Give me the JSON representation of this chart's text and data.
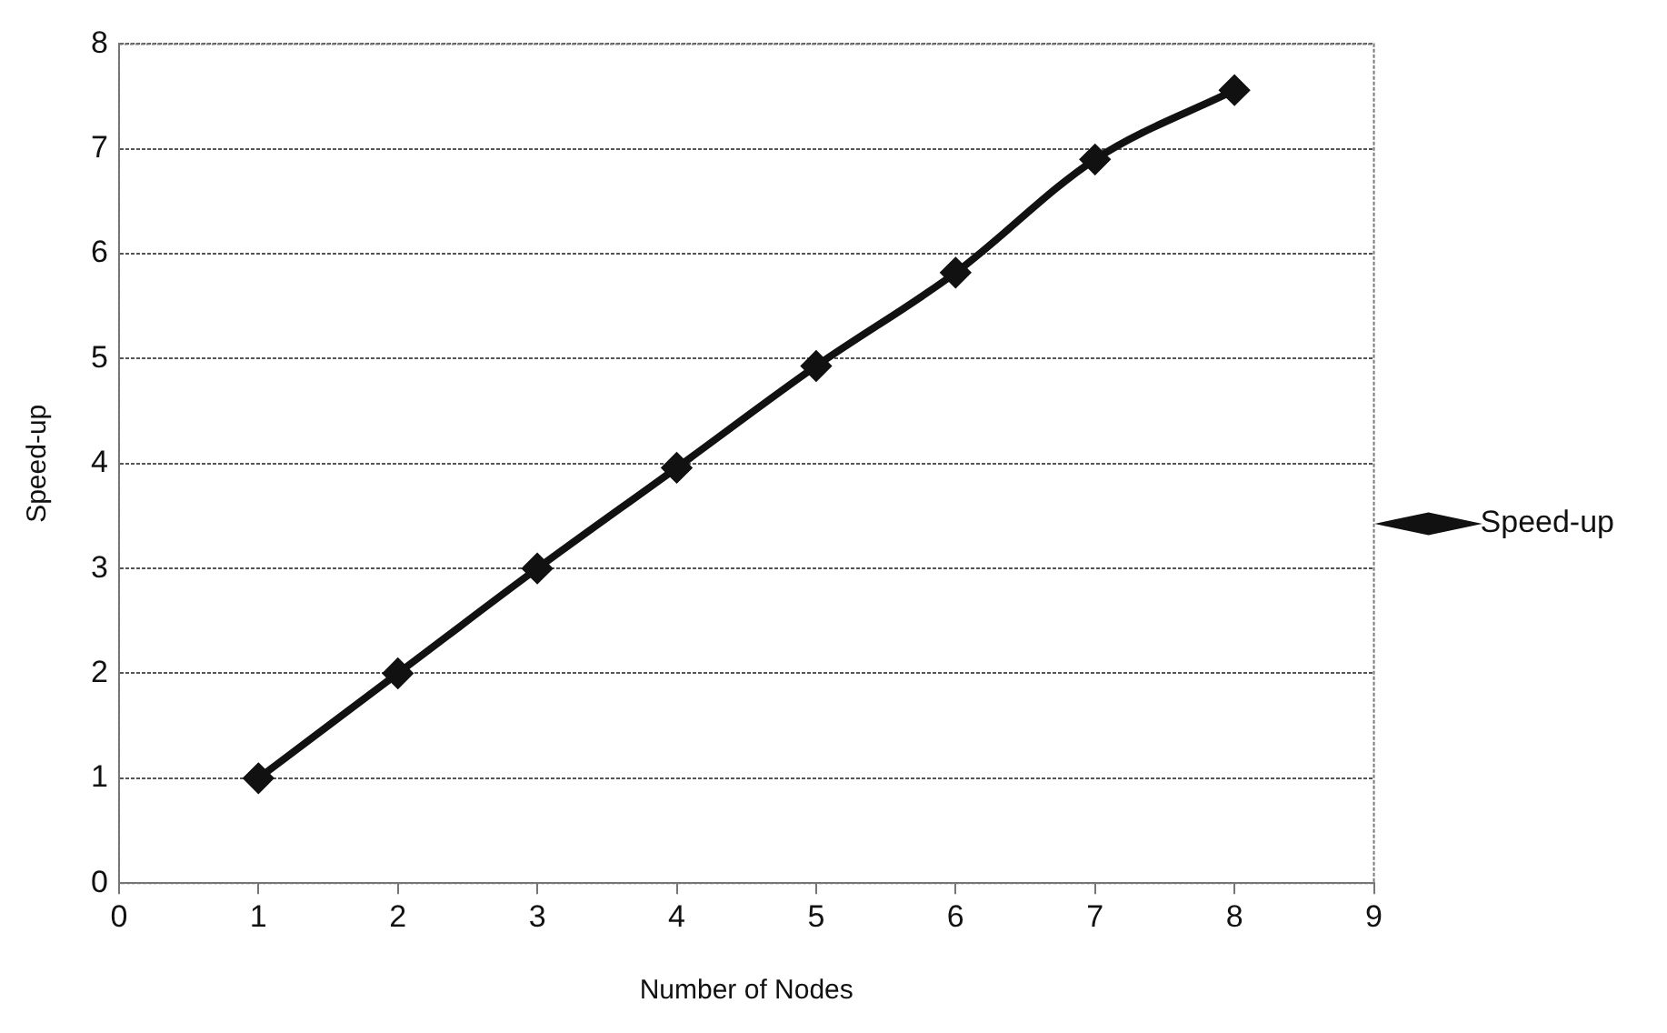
{
  "chart_data": {
    "type": "line",
    "xlabel": "Number of Nodes",
    "ylabel": "Speed-up",
    "x": [
      1,
      2,
      3,
      4,
      5,
      6,
      7,
      8
    ],
    "series": [
      {
        "name": "Speed-up",
        "color": "#111111",
        "values": [
          1.0,
          2.0,
          3.0,
          3.96,
          4.93,
          5.82,
          6.9,
          7.56
        ]
      }
    ],
    "xlim": [
      0,
      9
    ],
    "xticks": [
      0,
      1,
      2,
      3,
      4,
      5,
      6,
      7,
      8,
      9
    ],
    "ylim": [
      0,
      8
    ],
    "yticks": [
      0,
      1,
      2,
      3,
      4,
      5,
      6,
      7,
      8
    ],
    "grid": "y",
    "legend": "right",
    "marker": "diamond",
    "line_style": "solid"
  }
}
